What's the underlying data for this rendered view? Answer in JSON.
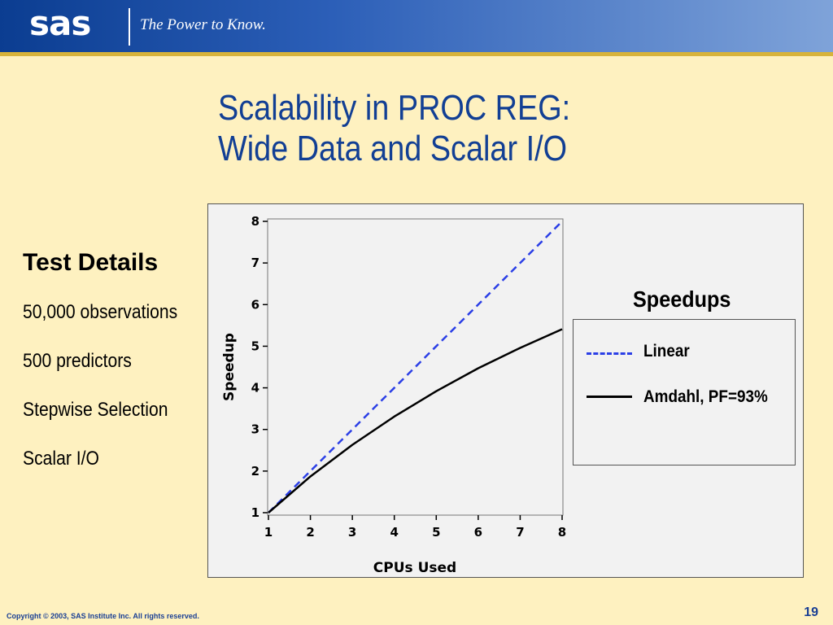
{
  "header": {
    "logo_text": "sas",
    "tagline": "The Power to Know."
  },
  "slide": {
    "title_line1": "Scalability in PROC REG:",
    "title_line2": "Wide Data and Scalar I/O"
  },
  "test_details": {
    "heading": "Test Details",
    "items": [
      "50,000 observations",
      "500 predictors",
      "Stepwise Selection",
      "Scalar I/O"
    ]
  },
  "legend": {
    "title": "Speedups",
    "linear_label": "Linear",
    "amdahl_label": "Amdahl, PF=93%"
  },
  "colors": {
    "linear": "#2b3fe6",
    "amdahl": "#000000",
    "title": "#123f94",
    "background": "#fef1c0"
  },
  "chart_data": {
    "type": "line",
    "xlabel": "CPUs Used",
    "ylabel": "Speedup",
    "xlim": [
      1,
      8
    ],
    "ylim": [
      1,
      8
    ],
    "x": [
      1,
      2,
      3,
      4,
      5,
      6,
      7,
      8
    ],
    "xticks": [
      "1",
      "2",
      "3",
      "4",
      "5",
      "6",
      "7",
      "8"
    ],
    "yticks": [
      "1",
      "2",
      "3",
      "4",
      "5",
      "6",
      "7",
      "8"
    ],
    "grid": false,
    "legend_position": "right",
    "series": [
      {
        "name": "Linear",
        "style": "dashed",
        "values": [
          1,
          2,
          3,
          4,
          5,
          6,
          7,
          8
        ]
      },
      {
        "name": "Amdahl, PF=93%",
        "style": "solid",
        "values": [
          1.0,
          1.87,
          2.63,
          3.31,
          3.92,
          4.47,
          4.96,
          5.41
        ]
      }
    ]
  },
  "footer": {
    "copyright": "Copyright © 2003, SAS Institute Inc. All rights reserved.",
    "page_number": "19"
  }
}
